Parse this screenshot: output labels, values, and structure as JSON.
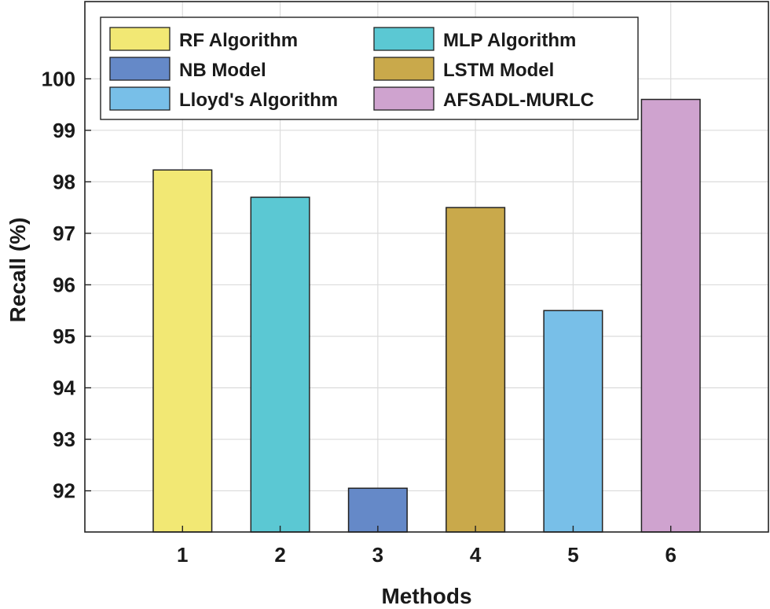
{
  "chart_data": {
    "type": "bar",
    "title": "",
    "xlabel": "Methods",
    "ylabel": "Recall (%)",
    "ylim": [
      91.2,
      101.5
    ],
    "yticks": [
      92,
      93,
      94,
      95,
      96,
      97,
      98,
      99,
      100
    ],
    "categories": [
      "1",
      "2",
      "3",
      "4",
      "5",
      "6"
    ],
    "series": [
      {
        "name": "RF Algorithm",
        "value": 98.23,
        "color": "#f2e874"
      },
      {
        "name": "MLP Algorithm",
        "value": 97.7,
        "color": "#5bc8d3"
      },
      {
        "name": "NB Model",
        "value": 92.05,
        "color": "#6589c8"
      },
      {
        "name": "LSTM Model",
        "value": 97.5,
        "color": "#c9a94b"
      },
      {
        "name": "Lloyd's Algorithm",
        "value": 95.5,
        "color": "#78bfe8"
      },
      {
        "name": "AFSADL-MURLC",
        "value": 99.6,
        "color": "#cfa3cf"
      }
    ],
    "grid": true,
    "legend_position": "top-left"
  }
}
